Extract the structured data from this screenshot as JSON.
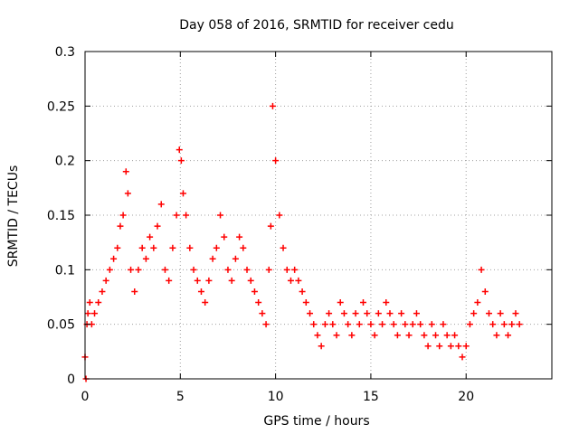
{
  "chart_data": {
    "type": "scatter",
    "title": "Day 058 of 2016, SRMTID for receiver cedu",
    "xlabel": "GPS time / hours",
    "ylabel": "SRMTID / TECUs",
    "xlim": [
      0,
      24.5
    ],
    "ylim": [
      0,
      0.3
    ],
    "x_ticks": [
      0,
      5,
      10,
      15,
      20
    ],
    "x_tick_labels": [
      "0",
      "5",
      "10",
      "15",
      "20"
    ],
    "y_ticks": [
      0,
      0.05,
      0.1,
      0.15,
      0.2,
      0.25,
      0.3
    ],
    "y_tick_labels": [
      "0",
      "0.05",
      "0.1",
      "0.15",
      "0.2",
      "0.25",
      "0.3"
    ],
    "grid": true,
    "marker": "+",
    "color": "#ff0000",
    "series": [
      {
        "name": "SRMTID",
        "x": [
          0.0,
          0.05,
          0.1,
          0.15,
          0.25,
          0.35,
          0.5,
          0.7,
          0.9,
          1.1,
          1.3,
          1.5,
          1.7,
          1.85,
          2.0,
          2.15,
          2.25,
          2.4,
          2.6,
          2.8,
          3.0,
          3.2,
          3.4,
          3.6,
          3.8,
          4.0,
          4.2,
          4.4,
          4.6,
          4.8,
          4.95,
          5.05,
          5.15,
          5.3,
          5.5,
          5.7,
          5.9,
          6.1,
          6.3,
          6.5,
          6.7,
          6.9,
          7.1,
          7.3,
          7.5,
          7.7,
          7.9,
          8.1,
          8.3,
          8.5,
          8.7,
          8.9,
          9.1,
          9.3,
          9.5,
          9.65,
          9.75,
          9.85,
          10.0,
          10.2,
          10.4,
          10.6,
          10.8,
          11.0,
          11.2,
          11.4,
          11.6,
          11.8,
          12.0,
          12.2,
          12.4,
          12.6,
          12.8,
          13.0,
          13.2,
          13.4,
          13.6,
          13.8,
          14.0,
          14.2,
          14.4,
          14.6,
          14.8,
          15.0,
          15.2,
          15.4,
          15.6,
          15.8,
          16.0,
          16.2,
          16.4,
          16.6,
          16.8,
          17.0,
          17.2,
          17.4,
          17.6,
          17.8,
          18.0,
          18.2,
          18.4,
          18.6,
          18.8,
          19.0,
          19.2,
          19.4,
          19.6,
          19.8,
          20.0,
          20.2,
          20.4,
          20.6,
          20.8,
          21.0,
          21.2,
          21.4,
          21.6,
          21.8,
          22.0,
          22.2,
          22.4,
          22.6,
          22.8
        ],
        "y": [
          0.02,
          0.0,
          0.05,
          0.06,
          0.07,
          0.05,
          0.06,
          0.07,
          0.08,
          0.09,
          0.1,
          0.11,
          0.12,
          0.14,
          0.15,
          0.19,
          0.17,
          0.1,
          0.08,
          0.1,
          0.12,
          0.11,
          0.13,
          0.12,
          0.14,
          0.16,
          0.1,
          0.09,
          0.12,
          0.15,
          0.21,
          0.2,
          0.17,
          0.15,
          0.12,
          0.1,
          0.09,
          0.08,
          0.07,
          0.09,
          0.11,
          0.12,
          0.15,
          0.13,
          0.1,
          0.09,
          0.11,
          0.13,
          0.12,
          0.1,
          0.09,
          0.08,
          0.07,
          0.06,
          0.05,
          0.1,
          0.14,
          0.25,
          0.2,
          0.15,
          0.12,
          0.1,
          0.09,
          0.1,
          0.09,
          0.08,
          0.07,
          0.06,
          0.05,
          0.04,
          0.03,
          0.05,
          0.06,
          0.05,
          0.04,
          0.07,
          0.06,
          0.05,
          0.04,
          0.06,
          0.05,
          0.07,
          0.06,
          0.05,
          0.04,
          0.06,
          0.05,
          0.07,
          0.06,
          0.05,
          0.04,
          0.06,
          0.05,
          0.04,
          0.05,
          0.06,
          0.05,
          0.04,
          0.03,
          0.05,
          0.04,
          0.03,
          0.05,
          0.04,
          0.03,
          0.04,
          0.03,
          0.02,
          0.03,
          0.05,
          0.06,
          0.07,
          0.1,
          0.08,
          0.06,
          0.05,
          0.04,
          0.06,
          0.05,
          0.04,
          0.05,
          0.06,
          0.05
        ]
      }
    ]
  }
}
